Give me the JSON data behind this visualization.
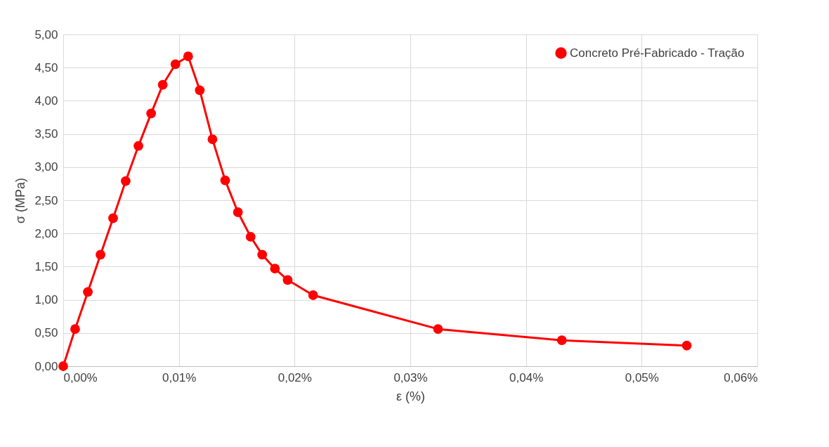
{
  "chart_data": {
    "type": "line",
    "xlabel": "ε (%)",
    "ylabel": "σ (MPa)",
    "x": [
      0,
      0.00103,
      0.00213,
      0.00322,
      0.00431,
      0.0054,
      0.0065,
      0.0076,
      0.0086,
      0.0097,
      0.0108,
      0.0118,
      0.0129,
      0.014,
      0.0151,
      0.0162,
      0.0172,
      0.0183,
      0.0194,
      0.0216,
      0.0324,
      0.0431,
      0.0539
    ],
    "series": [
      {
        "name": "Concreto Pré-Fabricado - Tração",
        "color": "#ff0000",
        "values": [
          0,
          0.56,
          1.12,
          1.68,
          2.23,
          2.79,
          3.32,
          3.81,
          4.24,
          4.55,
          4.67,
          4.16,
          3.42,
          2.8,
          2.32,
          1.95,
          1.68,
          1.47,
          1.3,
          1.07,
          0.56,
          0.39,
          0.31
        ]
      }
    ],
    "xlim": [
      0,
      0.06
    ],
    "xticks": [
      {
        "value": 0,
        "label": "0,00%"
      },
      {
        "value": 0.01,
        "label": "0,01%"
      },
      {
        "value": 0.02,
        "label": "0,02%"
      },
      {
        "value": 0.03,
        "label": "0,03%"
      },
      {
        "value": 0.04,
        "label": "0,04%"
      },
      {
        "value": 0.05,
        "label": "0,05%"
      },
      {
        "value": 0.06,
        "label": "0,06%"
      }
    ],
    "ylim": [
      0,
      5
    ],
    "yticks": [
      {
        "value": 0,
        "label": "0,00"
      },
      {
        "value": 0.5,
        "label": "0,50"
      },
      {
        "value": 1,
        "label": "1,00"
      },
      {
        "value": 1.5,
        "label": "1,50"
      },
      {
        "value": 2,
        "label": "2,00"
      },
      {
        "value": 2.5,
        "label": "2,50"
      },
      {
        "value": 3,
        "label": "3,00"
      },
      {
        "value": 3.5,
        "label": "3,50"
      },
      {
        "value": 4,
        "label": "4,00"
      },
      {
        "value": 4.5,
        "label": "4,50"
      },
      {
        "value": 5,
        "label": "5,00"
      }
    ],
    "grid": true,
    "legend": "top right",
    "marker": "circle",
    "line_style": "solid"
  }
}
